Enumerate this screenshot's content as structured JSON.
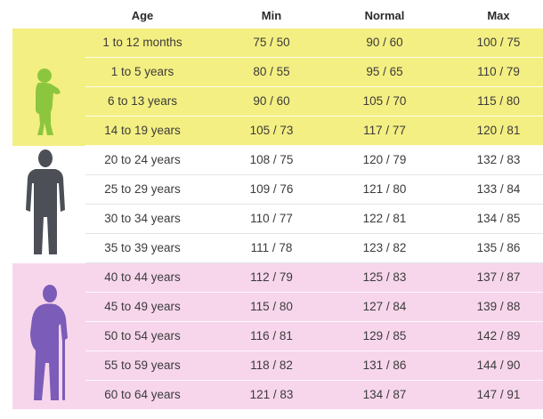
{
  "table": {
    "headers": [
      "Age",
      "Min",
      "Normal",
      "Max"
    ],
    "rows": [
      {
        "age": "1 to 12 months",
        "min": "75 / 50",
        "normal": "90 / 60",
        "max": "100 / 75",
        "group": "yellow"
      },
      {
        "age": "1 to 5 years",
        "min": "80 / 55",
        "normal": "95 / 65",
        "max": "110 / 79",
        "group": "yellow"
      },
      {
        "age": "6 to 13 years",
        "min": "90 / 60",
        "normal": "105 / 70",
        "max": "115 / 80",
        "group": "yellow"
      },
      {
        "age": "14 to 19 years",
        "min": "105 / 73",
        "normal": "117 / 77",
        "max": "120 / 81",
        "group": "yellow"
      },
      {
        "age": "20 to 24 years",
        "min": "108 / 75",
        "normal": "120 / 79",
        "max": "132 / 83",
        "group": "white"
      },
      {
        "age": "25 to 29 years",
        "min": "109 / 76",
        "normal": "121 / 80",
        "max": "133 / 84",
        "group": "white"
      },
      {
        "age": "30 to 34 years",
        "min": "110 / 77",
        "normal": "122 / 81",
        "max": "134 / 85",
        "group": "white"
      },
      {
        "age": "35 to 39 years",
        "min": "111 / 78",
        "normal": "123 / 82",
        "max": "135 / 86",
        "group": "white"
      },
      {
        "age": "40 to 44 years",
        "min": "112 / 79",
        "normal": "125 / 83",
        "max": "137 / 87",
        "group": "pink"
      },
      {
        "age": "45 to 49 years",
        "min": "115 / 80",
        "normal": "127 / 84",
        "max": "139 / 88",
        "group": "pink"
      },
      {
        "age": "50 to 54 years",
        "min": "116 / 81",
        "normal": "129 / 85",
        "max": "142 / 89",
        "group": "pink"
      },
      {
        "age": "55 to 59 years",
        "min": "118 / 82",
        "normal": "131 / 86",
        "max": "144 / 90",
        "group": "pink"
      },
      {
        "age": "60 to 64 years",
        "min": "121 / 83",
        "normal": "134 / 87",
        "max": "147 / 91",
        "group": "pink"
      }
    ]
  },
  "colors": {
    "yellow_band": "#f4ef82",
    "pink_band": "#f7d6ec",
    "child_figure": "#8cc63f",
    "adult_figure": "#4d4f57",
    "elder_figure": "#7b5cb8"
  },
  "icons": {
    "child": "child-silhouette-icon",
    "adult": "adult-silhouette-icon",
    "elder": "elderly-with-cane-silhouette-icon"
  }
}
